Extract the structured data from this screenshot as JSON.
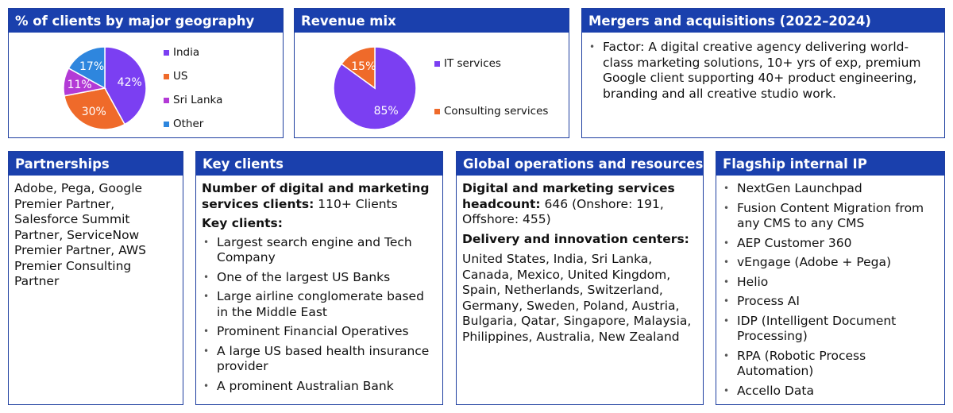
{
  "geography": {
    "title": "% of clients by major geography",
    "legend": [
      "India",
      "US",
      "Sri Lanka",
      "Other"
    ]
  },
  "revenue": {
    "title": "Revenue mix",
    "legend": [
      "IT services",
      "Consulting services"
    ]
  },
  "chart_data": [
    {
      "type": "pie",
      "title": "% of clients by major geography",
      "categories": [
        "India",
        "US",
        "Sri Lanka",
        "Other"
      ],
      "values": [
        42,
        30,
        11,
        17
      ],
      "labels": [
        "42%",
        "30%",
        "11%",
        "17%"
      ],
      "colors": [
        "#7b3ff2",
        "#ef6a2a",
        "#b33ad6",
        "#2e86de"
      ],
      "legend_position": "right"
    },
    {
      "type": "pie",
      "title": "Revenue mix",
      "categories": [
        "IT services",
        "Consulting services"
      ],
      "values": [
        85,
        15
      ],
      "labels": [
        "85%",
        "15%"
      ],
      "colors": [
        "#7b3ff2",
        "#ef6a2a"
      ],
      "legend_position": "right"
    }
  ],
  "mna": {
    "title": "Mergers and acquisitions (2022–2024)",
    "items": [
      "Factor: A digital creative agency delivering world-class marketing solutions, 10+ yrs of exp, premium Google client supporting 40+ product engineering, branding and all creative studio work."
    ]
  },
  "partnerships": {
    "title": "Partnerships",
    "text": "Adobe, Pega, Google Premier Partner, Salesforce Summit Partner, ServiceNow Premier Partner, AWS Premier Consulting Partner"
  },
  "key_clients": {
    "title": "Key clients",
    "count_label": "Number of digital and marketing services clients:",
    "count_value": " 110+ Clients",
    "list_label": "Key clients:",
    "items": [
      "Largest search engine and Tech Company",
      "One of the largest US Banks",
      "Large airline conglomerate based in the Middle East",
      "Prominent Financial Operatives",
      "A large US based health insurance provider",
      "A prominent Australian Bank"
    ]
  },
  "global_ops": {
    "title": "Global operations and resources",
    "headcount_label": "Digital and marketing services headcount:",
    "headcount_value": " 646 (Onshore: 191, Offshore: 455)",
    "centers_label": "Delivery and innovation centers:",
    "centers_text": "United States, India, Sri Lanka, Canada, Mexico, United Kingdom, Spain, Netherlands, Switzerland, Germany, Sweden, Poland, Austria, Bulgaria, Qatar, Singapore, Malaysia, Philippines, Australia, New Zealand"
  },
  "flagship_ip": {
    "title": "Flagship internal IP",
    "items": [
      "NextGen Launchpad",
      "Fusion Content Migration from any CMS to any CMS",
      "AEP Customer 360",
      "vEngage (Adobe + Pega)",
      "Helio",
      "Process AI",
      "IDP (Intelligent Document Processing)",
      "RPA (Robotic Process Automation)",
      "Accello Data"
    ]
  }
}
